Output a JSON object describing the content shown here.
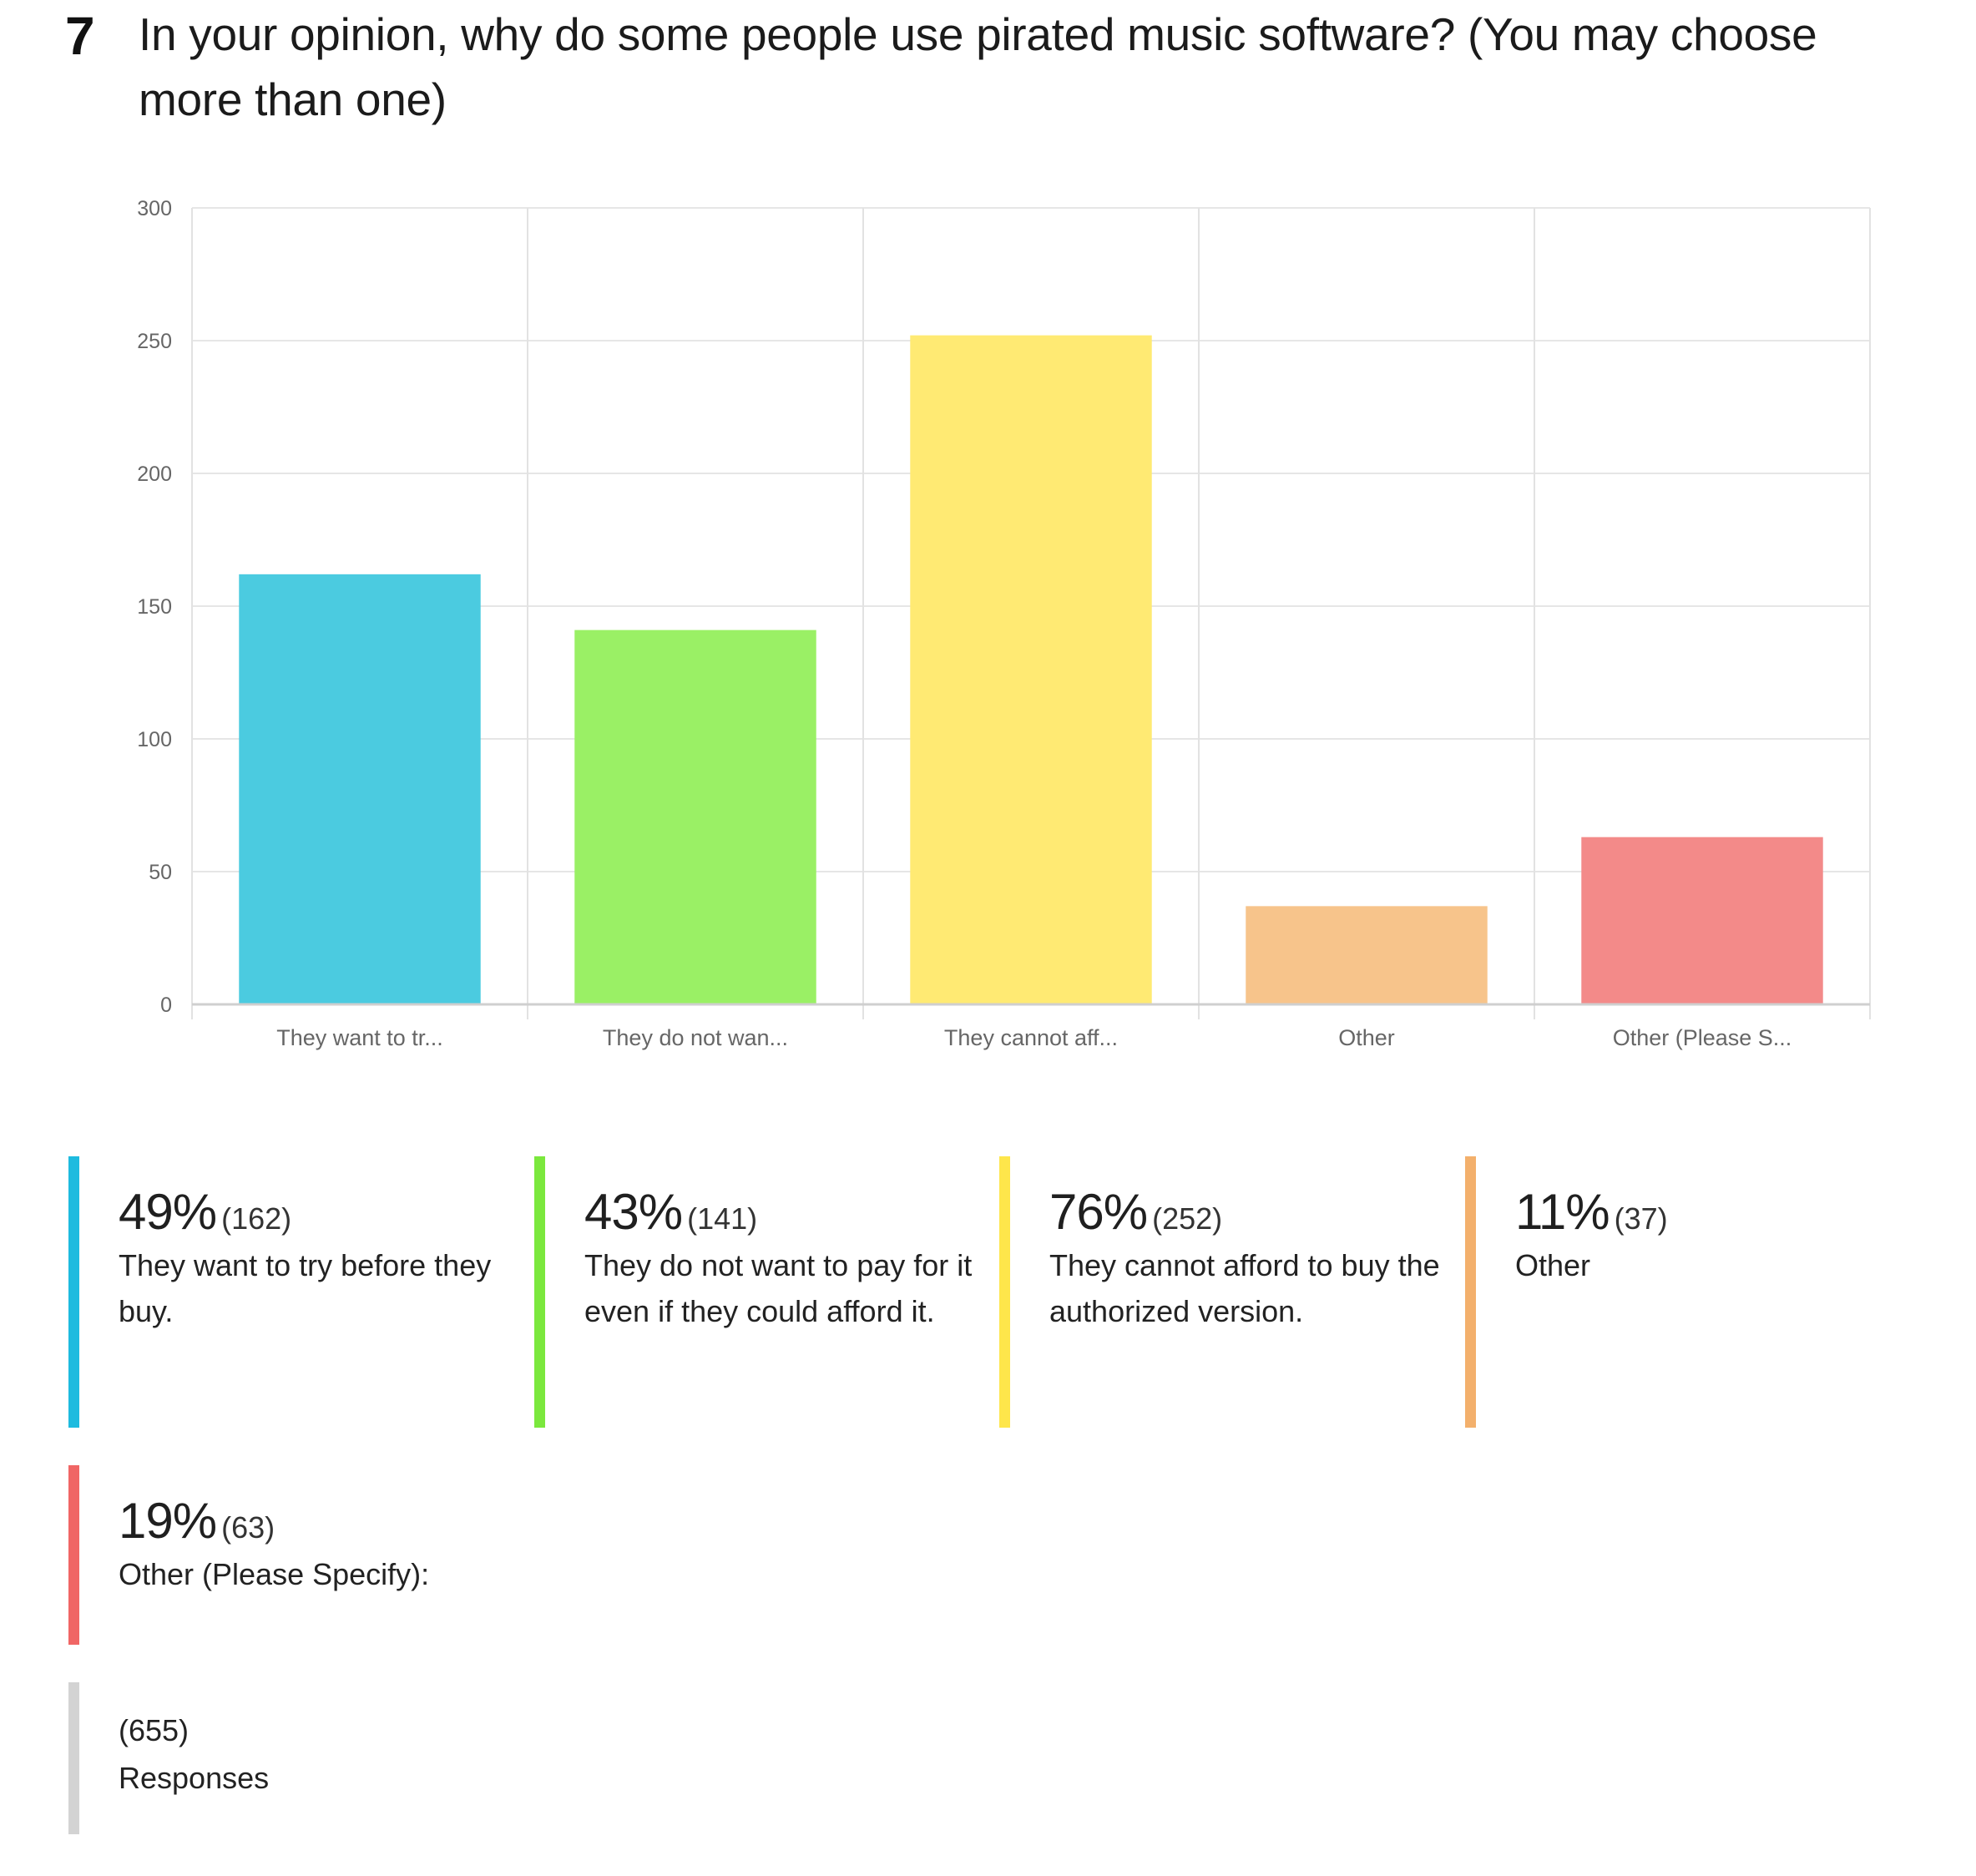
{
  "question": {
    "number": "7",
    "text": "In your opinion, why do some people use pirated music software? (You may choose more than one)"
  },
  "chart_data": {
    "type": "bar",
    "categories": [
      "They want to tr...",
      "They do not wan...",
      "They cannot aff...",
      "Other",
      "Other (Please S..."
    ],
    "values": [
      162,
      141,
      252,
      37,
      63
    ],
    "colors": [
      "#4bcbe0",
      "#9af065",
      "#ffea73",
      "#f7c48b",
      "#f38a89"
    ],
    "ylim": [
      0,
      300
    ],
    "yticks": [
      "0",
      "50",
      "100",
      "150",
      "200",
      "250",
      "300"
    ],
    "grid": true,
    "title": "",
    "xlabel": "",
    "ylabel": ""
  },
  "legend": [
    {
      "pct": "49%",
      "count": "(162)",
      "label": "They want to try before they buy.",
      "color": "#1ebbdf"
    },
    {
      "pct": "43%",
      "count": "(141)",
      "label": "They do not want to pay for it even if they could afford it.",
      "color": "#7be83d"
    },
    {
      "pct": "76%",
      "count": "(252)",
      "label": "They cannot afford to buy the authorized version.",
      "color": "#fee64b"
    },
    {
      "pct": "11%",
      "count": "(37)",
      "label": "Other",
      "color": "#f3b06c"
    },
    {
      "pct": "19%",
      "count": "(63)",
      "label": "Other (Please Specify):",
      "color": "#f06665"
    }
  ],
  "responses": {
    "count": "(655)",
    "label": "Responses",
    "color": "#d3d3d3"
  }
}
